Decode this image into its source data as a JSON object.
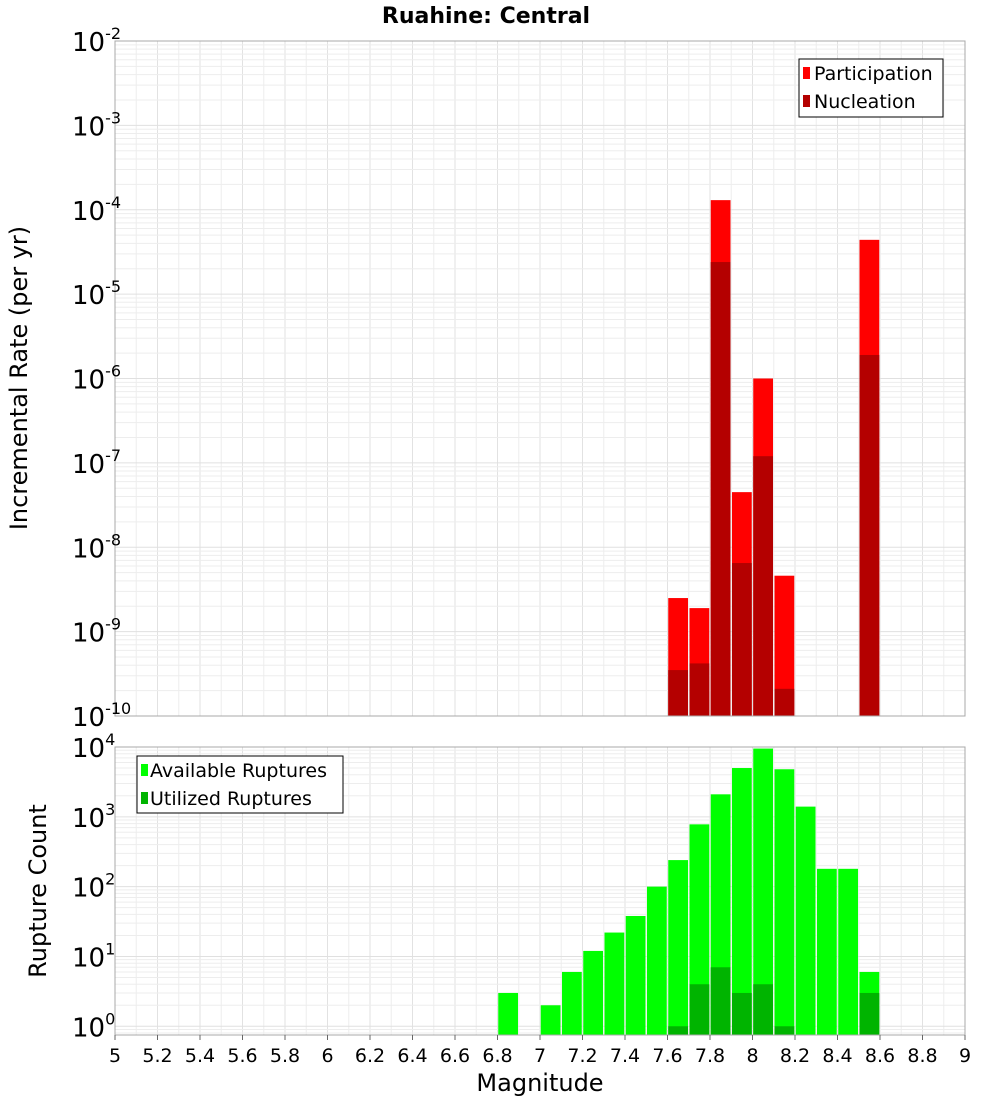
{
  "chart_data": [
    {
      "type": "bar",
      "title": "Ruahine: Central",
      "xlabel": "",
      "ylabel": "Incremental Rate (per yr)",
      "yscale": "log",
      "ylim": [
        1e-10,
        0.01
      ],
      "xlim": [
        5,
        9
      ],
      "grid": true,
      "legend_position": "top-right",
      "series": [
        {
          "name": "Participation",
          "color": "#ff0000",
          "points": [
            {
              "x": 7.65,
              "y": 2.5e-09
            },
            {
              "x": 7.75,
              "y": 1.9e-09
            },
            {
              "x": 7.85,
              "y": 0.00013
            },
            {
              "x": 7.95,
              "y": 4.5e-08
            },
            {
              "x": 8.05,
              "y": 1e-06
            },
            {
              "x": 8.15,
              "y": 4.6e-09
            },
            {
              "x": 8.55,
              "y": 4.4e-05
            }
          ]
        },
        {
          "name": "Nucleation",
          "color": "#b40000",
          "points": [
            {
              "x": 7.65,
              "y": 3.5e-10
            },
            {
              "x": 7.75,
              "y": 4.2e-10
            },
            {
              "x": 7.85,
              "y": 2.4e-05
            },
            {
              "x": 7.95,
              "y": 6.5e-09
            },
            {
              "x": 8.05,
              "y": 1.2e-07
            },
            {
              "x": 8.15,
              "y": 2.1e-10
            },
            {
              "x": 8.55,
              "y": 1.9e-06
            }
          ]
        }
      ],
      "y_ticks": [
        {
          "base": "10",
          "exp": "-2",
          "value": 0.01
        },
        {
          "base": "10",
          "exp": "-3",
          "value": 0.001
        },
        {
          "base": "10",
          "exp": "-4",
          "value": 0.0001
        },
        {
          "base": "10",
          "exp": "-5",
          "value": 1e-05
        },
        {
          "base": "10",
          "exp": "-6",
          "value": 1e-06
        },
        {
          "base": "10",
          "exp": "-7",
          "value": 1e-07
        },
        {
          "base": "10",
          "exp": "-8",
          "value": 1e-08
        },
        {
          "base": "10",
          "exp": "-9",
          "value": 1e-09
        },
        {
          "base": "10",
          "exp": "-10",
          "value": 1e-10
        }
      ]
    },
    {
      "type": "bar",
      "title": "",
      "xlabel": "Magnitude",
      "ylabel": "Rupture Count",
      "yscale": "log",
      "ylim": [
        0.75,
        10000
      ],
      "xlim": [
        5,
        9
      ],
      "grid": true,
      "legend_position": "top-left",
      "series": [
        {
          "name": "Available Ruptures",
          "color": "#00ff00",
          "points": [
            {
              "x": 6.85,
              "y": 3
            },
            {
              "x": 7.05,
              "y": 2
            },
            {
              "x": 7.15,
              "y": 6
            },
            {
              "x": 7.25,
              "y": 12
            },
            {
              "x": 7.35,
              "y": 22
            },
            {
              "x": 7.45,
              "y": 38
            },
            {
              "x": 7.55,
              "y": 100
            },
            {
              "x": 7.65,
              "y": 240
            },
            {
              "x": 7.75,
              "y": 780
            },
            {
              "x": 7.85,
              "y": 2100
            },
            {
              "x": 7.95,
              "y": 5000
            },
            {
              "x": 8.05,
              "y": 9500
            },
            {
              "x": 8.15,
              "y": 4800
            },
            {
              "x": 8.25,
              "y": 1400
            },
            {
              "x": 8.35,
              "y": 180
            },
            {
              "x": 8.45,
              "y": 180
            },
            {
              "x": 8.55,
              "y": 6
            }
          ]
        },
        {
          "name": "Utilized Ruptures",
          "color": "#00b400",
          "points": [
            {
              "x": 7.65,
              "y": 1
            },
            {
              "x": 7.75,
              "y": 4
            },
            {
              "x": 7.85,
              "y": 7
            },
            {
              "x": 7.95,
              "y": 3
            },
            {
              "x": 8.05,
              "y": 4
            },
            {
              "x": 8.15,
              "y": 1
            },
            {
              "x": 8.55,
              "y": 3
            }
          ]
        }
      ],
      "y_ticks": [
        {
          "base": "10",
          "exp": "4",
          "value": 10000
        },
        {
          "base": "10",
          "exp": "3",
          "value": 1000
        },
        {
          "base": "10",
          "exp": "2",
          "value": 100
        },
        {
          "base": "10",
          "exp": "1",
          "value": 10
        },
        {
          "base": "10",
          "exp": "0",
          "value": 1
        }
      ],
      "x_ticks": [
        "5",
        "5.2",
        "5.4",
        "5.6",
        "5.8",
        "6",
        "6.2",
        "6.4",
        "6.6",
        "6.8",
        "7",
        "7.2",
        "7.4",
        "7.6",
        "7.8",
        "8",
        "8.2",
        "8.4",
        "8.6",
        "8.8",
        "9"
      ]
    }
  ]
}
